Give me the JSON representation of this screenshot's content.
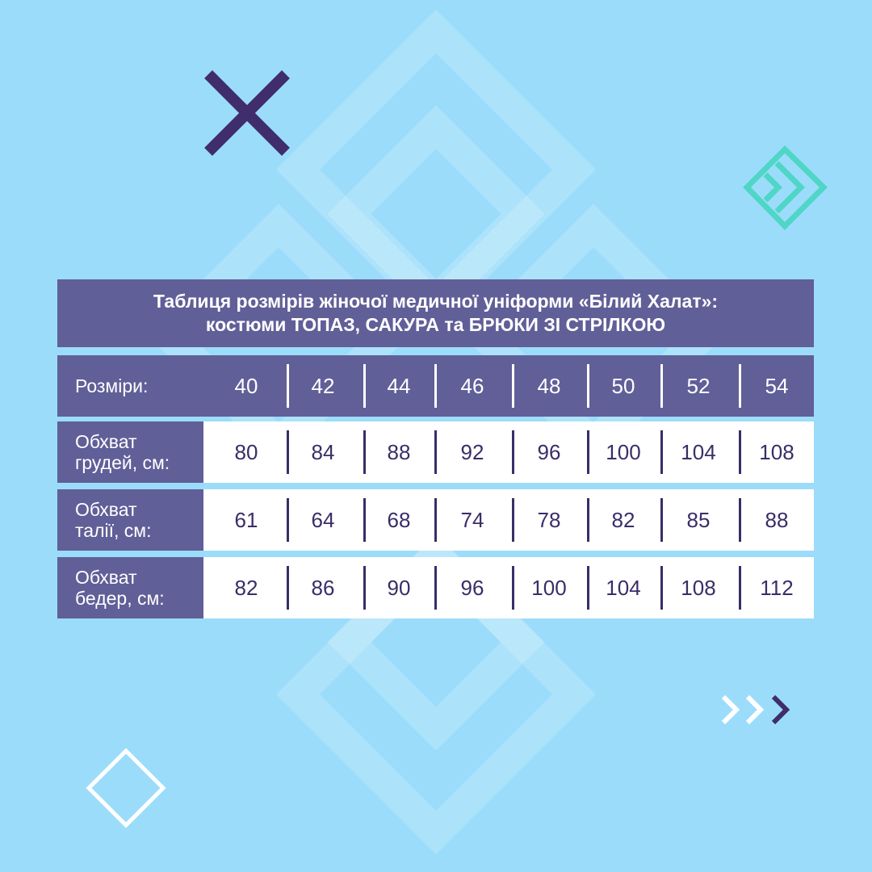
{
  "title": {
    "line1": "Таблиця розмірів жіночої медичної уніформи «Білий Халат»:",
    "line2": "костюми ТОПАЗ, САКУРА та БРЮКИ ЗІ СТРІЛКОЮ"
  },
  "table": {
    "header_label": "Розміри:",
    "sizes": [
      "40",
      "42",
      "44",
      "46",
      "48",
      "50",
      "52",
      "54"
    ],
    "rows": [
      {
        "label1": "Обхват",
        "label2": "грудей, см:",
        "values": [
          "80",
          "84",
          "88",
          "92",
          "96",
          "100",
          "104",
          "108"
        ]
      },
      {
        "label1": "Обхват",
        "label2": "талії, см:",
        "values": [
          "61",
          "64",
          "68",
          "74",
          "78",
          "82",
          "85",
          "88"
        ]
      },
      {
        "label1": "Обхват",
        "label2": "бедер, см:",
        "values": [
          "82",
          "86",
          "90",
          "96",
          "100",
          "104",
          "108",
          "112"
        ]
      }
    ]
  },
  "colors": {
    "background": "#9cdcfb",
    "table_header": "#615f98",
    "text_dark": "#3a2d68",
    "accent_teal": "#4fd6c6",
    "accent_purple": "#3f2e6b"
  },
  "icons": [
    "x-cross-icon",
    "teal-diamond-chevron-icon",
    "triple-chevron-icon",
    "white-diamond-outline-icon"
  ]
}
